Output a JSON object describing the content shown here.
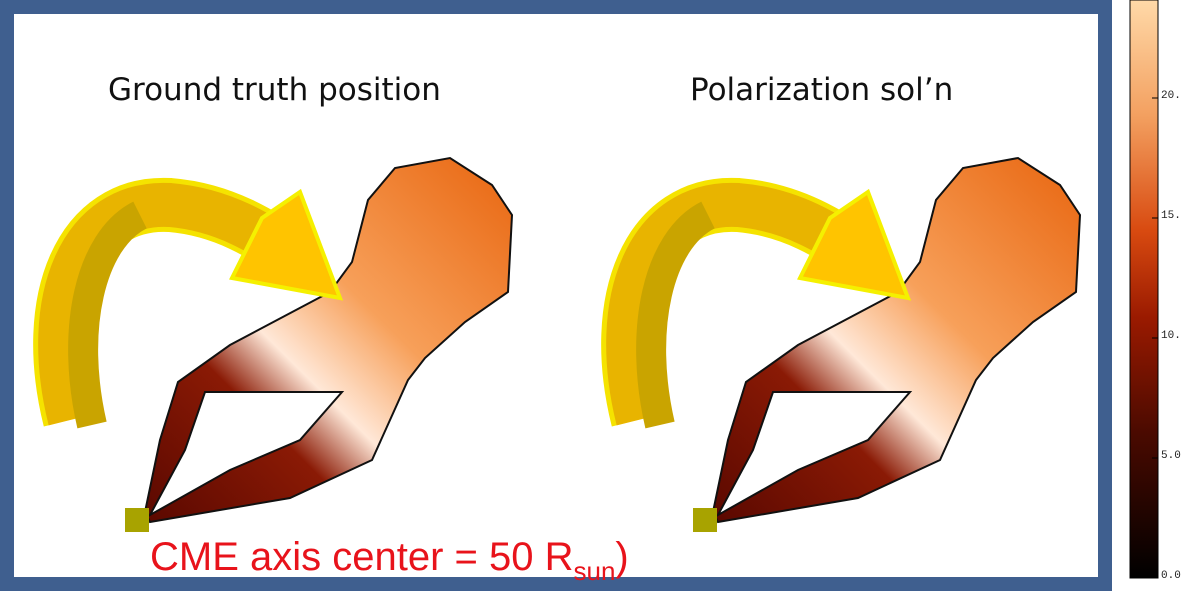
{
  "panels": [
    {
      "title": "Ground truth position"
    },
    {
      "title": "Polarization sol’n"
    }
  ],
  "annotation": {
    "text": "CME axis center = 50 R",
    "subscript": "sun",
    "suffix": ")"
  },
  "colorbar": {
    "ticks": [
      {
        "value": 20,
        "label": "20."
      },
      {
        "value": 15,
        "label": "15."
      },
      {
        "value": 10,
        "label": "10."
      },
      {
        "value": 5,
        "label": "5.0"
      },
      {
        "value": 0,
        "label": "0.0"
      }
    ]
  }
}
